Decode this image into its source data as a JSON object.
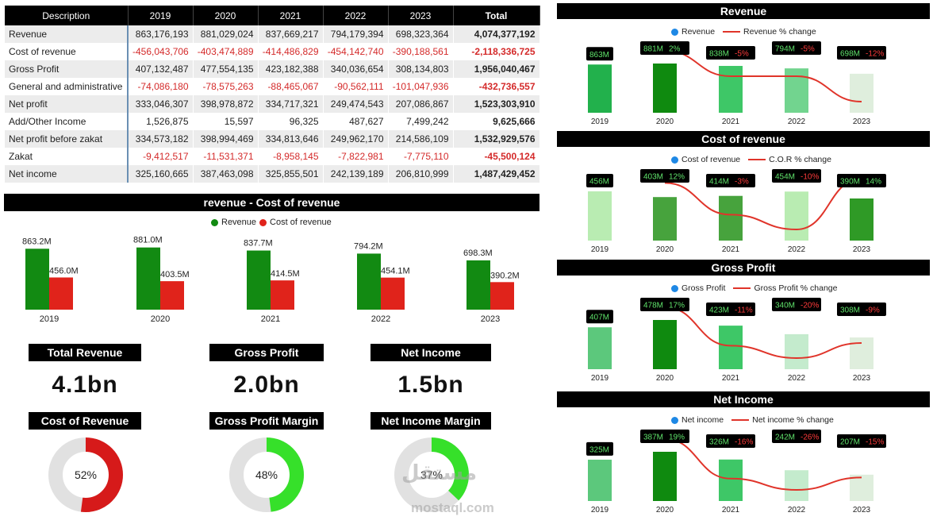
{
  "table": {
    "headers": [
      "Description",
      "2019",
      "2020",
      "2021",
      "2022",
      "2023",
      "Total"
    ],
    "rows": [
      {
        "label": "Revenue",
        "values": [
          "863,176,193",
          "881,029,024",
          "837,669,217",
          "794,179,394",
          "698,323,364"
        ],
        "total": "4,074,377,192",
        "negative": false
      },
      {
        "label": "Cost of revenue",
        "values": [
          "-456,043,706",
          "-403,474,889",
          "-414,486,829",
          "-454,142,740",
          "-390,188,561"
        ],
        "total": "-2,118,336,725",
        "negative": true
      },
      {
        "label": "Gross Profit",
        "values": [
          "407,132,487",
          "477,554,135",
          "423,182,388",
          "340,036,654",
          "308,134,803"
        ],
        "total": "1,956,040,467",
        "negative": false
      },
      {
        "label": "General and administrative",
        "values": [
          "-74,086,180",
          "-78,575,263",
          "-88,465,067",
          "-90,562,111",
          "-101,047,936"
        ],
        "total": "-432,736,557",
        "negative": true
      },
      {
        "label": "Net profit",
        "values": [
          "333,046,307",
          "398,978,872",
          "334,717,321",
          "249,474,543",
          "207,086,867"
        ],
        "total": "1,523,303,910",
        "negative": false
      },
      {
        "label": "Add/Other Income",
        "values": [
          "1,526,875",
          "15,597",
          "96,325",
          "487,627",
          "7,499,242"
        ],
        "total": "9,625,666",
        "negative": false
      },
      {
        "label": "Net profit before zakat",
        "values": [
          "334,573,182",
          "398,994,469",
          "334,813,646",
          "249,962,170",
          "214,586,109"
        ],
        "total": "1,532,929,576",
        "negative": false
      },
      {
        "label": "Zakat",
        "values": [
          "-9,412,517",
          "-11,531,371",
          "-8,958,145",
          "-7,822,981",
          "-7,775,110"
        ],
        "total": "-45,500,124",
        "negative": true
      },
      {
        "label": "Net income",
        "values": [
          "325,160,665",
          "387,463,098",
          "325,855,501",
          "242,139,189",
          "206,810,999"
        ],
        "total": "1,487,429,452",
        "negative": false
      }
    ]
  },
  "colors": {
    "revenue_green": "#128a12",
    "cost_red": "#e0231b",
    "trend_line": "#e0342a",
    "legend_blue": "#1e88e5",
    "donut_red": "#d61a1a",
    "donut_lime": "#36e02a",
    "donut_grey": "#e1e1e1"
  },
  "combo": {
    "title": "revenue - Cost of revenue",
    "legend": [
      "Revenue",
      "Cost of revenue"
    ]
  },
  "kpis": [
    {
      "title": "Total Revenue",
      "value": "4.1bn"
    },
    {
      "title": "Gross Profit",
      "value": "2.0bn"
    },
    {
      "title": "Net Income",
      "value": "1.5bn"
    }
  ],
  "donuts": [
    {
      "title": "Cost of Revenue",
      "label": "52%",
      "percent": 52,
      "color": "#d61a1a"
    },
    {
      "title": "Gross Profit Margin",
      "label": "48%",
      "percent": 48,
      "color": "#36e02a"
    },
    {
      "title": "Net Income Margin",
      "label": "37%",
      "percent": 37,
      "color": "#36e02a"
    }
  ],
  "right_panels": [
    {
      "title": "Revenue",
      "legend": [
        "Revenue",
        "Revenue % change"
      ]
    },
    {
      "title": "Cost of revenue",
      "legend": [
        "Cost of revenue",
        "C.O.R % change"
      ]
    },
    {
      "title": "Gross Profit",
      "legend": [
        "Gross Profit",
        "Gross Profit % change"
      ]
    },
    {
      "title": "Net Income",
      "legend": [
        "Net income",
        "Net income % change"
      ]
    }
  ],
  "watermark": {
    "arabic": "مستقل",
    "latin": "mostaql.com"
  },
  "chart_data": [
    {
      "type": "bar",
      "title": "revenue - Cost of revenue",
      "categories": [
        "2019",
        "2020",
        "2021",
        "2022",
        "2023"
      ],
      "legend_position": "top-center",
      "series": [
        {
          "name": "Revenue",
          "values": [
            863.2,
            881.0,
            837.7,
            794.2,
            698.3
          ],
          "labels": [
            "863.2M",
            "881.0M",
            "837.7M",
            "794.2M",
            "698.3M"
          ],
          "color": "#128a12"
        },
        {
          "name": "Cost of revenue",
          "values": [
            456.0,
            403.5,
            414.5,
            454.1,
            390.2
          ],
          "labels": [
            "456.0M",
            "403.5M",
            "414.5M",
            "454.1M",
            "390.2M"
          ],
          "color": "#e0231b"
        }
      ]
    },
    {
      "type": "bar",
      "title": "Revenue",
      "categories": [
        "2019",
        "2020",
        "2021",
        "2022",
        "2023"
      ],
      "series": [
        {
          "name": "Revenue",
          "values": [
            863,
            881,
            838,
            794,
            698
          ],
          "labels": [
            "863M",
            "881M",
            "838M",
            "794M",
            "698M"
          ],
          "colors": [
            "#22b14c",
            "#0f8a0f",
            "#3ec767",
            "#72d48f",
            "#dfeedd"
          ]
        },
        {
          "name": "Revenue % change",
          "type": "line",
          "values": [
            null,
            2,
            -5,
            -5,
            -12
          ],
          "labels": [
            "",
            "2%",
            "-5%",
            "-5%",
            "-12%"
          ]
        }
      ]
    },
    {
      "type": "bar",
      "title": "Cost of revenue",
      "categories": [
        "2019",
        "2020",
        "2021",
        "2022",
        "2023"
      ],
      "series": [
        {
          "name": "Cost of revenue",
          "values": [
            456,
            403,
            414,
            454,
            390
          ],
          "labels": [
            "456M",
            "403M",
            "414M",
            "454M",
            "390M"
          ],
          "colors": [
            "#b9ecb2",
            "#47a33d",
            "#47a33d",
            "#b9ecb2",
            "#2f9a26"
          ]
        },
        {
          "name": "C.O.R % change",
          "type": "line",
          "values": [
            null,
            12,
            -3,
            -10,
            14
          ],
          "labels": [
            "",
            "12%",
            "-3%",
            "-10%",
            "14%"
          ]
        }
      ]
    },
    {
      "type": "bar",
      "title": "Gross Profit",
      "categories": [
        "2019",
        "2020",
        "2021",
        "2022",
        "2023"
      ],
      "series": [
        {
          "name": "Gross Profit",
          "values": [
            407,
            478,
            423,
            340,
            308
          ],
          "labels": [
            "407M",
            "478M",
            "423M",
            "340M",
            "308M"
          ],
          "colors": [
            "#5cc87c",
            "#0f8a0f",
            "#3ec767",
            "#c4ebcd",
            "#dfeedd"
          ]
        },
        {
          "name": "Gross Profit % change",
          "type": "line",
          "values": [
            null,
            17,
            -11,
            -20,
            -9
          ],
          "labels": [
            "",
            "17%",
            "-11%",
            "-20%",
            "-9%"
          ]
        }
      ]
    },
    {
      "type": "bar",
      "title": "Net Income",
      "categories": [
        "2019",
        "2020",
        "2021",
        "2022",
        "2023"
      ],
      "series": [
        {
          "name": "Net income",
          "values": [
            325,
            387,
            326,
            242,
            207
          ],
          "labels": [
            "325M",
            "387M",
            "326M",
            "242M",
            "207M"
          ],
          "colors": [
            "#5cc87c",
            "#0f8a0f",
            "#3ec767",
            "#c4ebcd",
            "#dfeedd"
          ]
        },
        {
          "name": "Net income % change",
          "type": "line",
          "values": [
            null,
            19,
            -16,
            -26,
            -15
          ],
          "labels": [
            "",
            "19%",
            "-16%",
            "-26%",
            "-15%"
          ]
        }
      ]
    }
  ]
}
